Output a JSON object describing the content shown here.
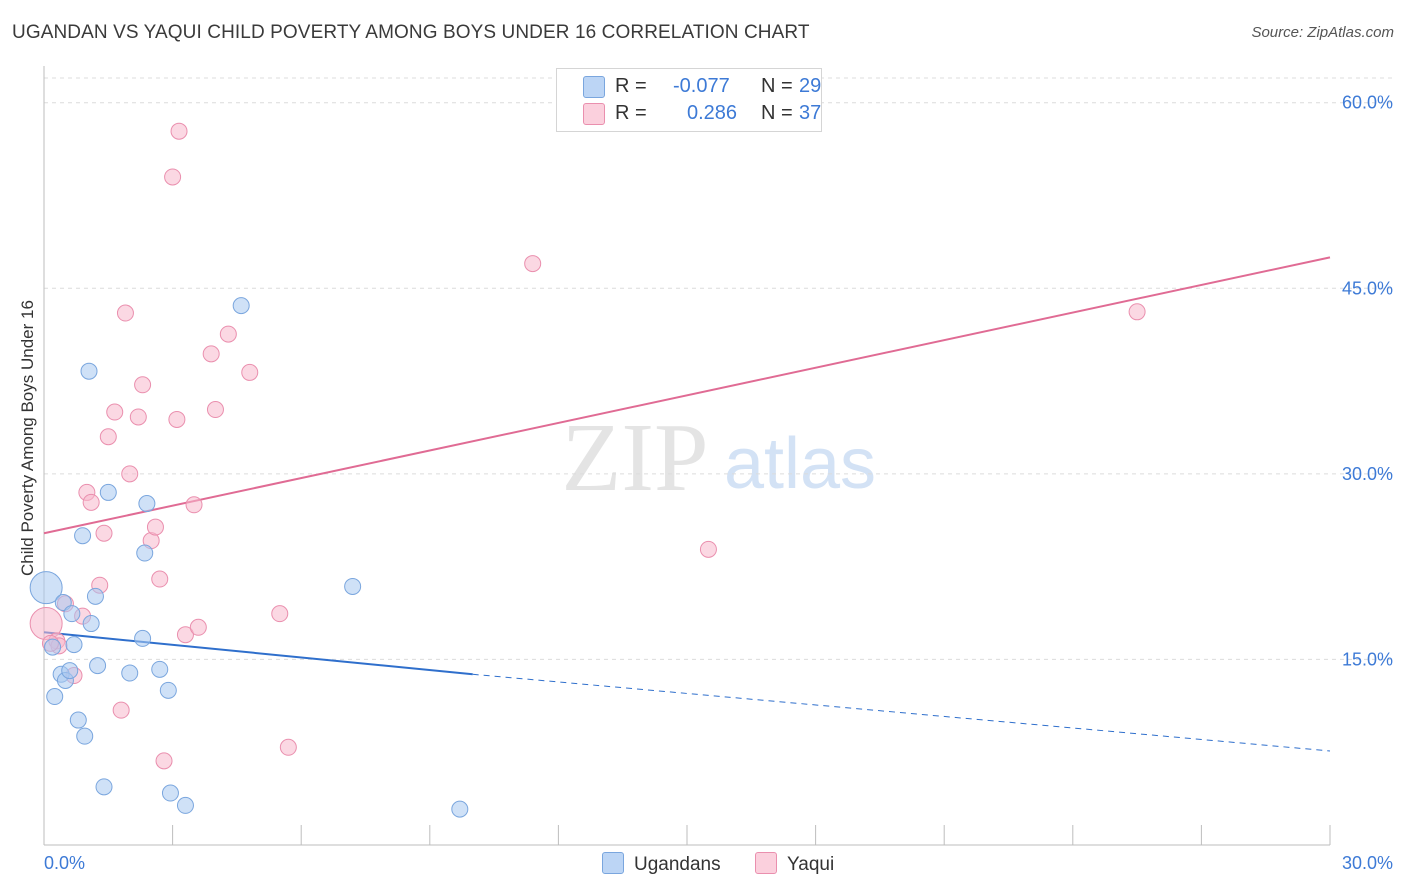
{
  "header": {
    "title": "UGANDAN VS YAQUI CHILD POVERTY AMONG BOYS UNDER 16 CORRELATION CHART",
    "source": "Source: ZipAtlas.com"
  },
  "watermark": {
    "zip": "ZIP",
    "atlas": "atlas"
  },
  "legend_top": {
    "rows": [
      {
        "r_label": "R =",
        "r_value": "-0.077",
        "n_label": "N =",
        "n_value": "29",
        "color": "#a8c8f0"
      },
      {
        "r_label": "R =",
        "r_value": "0.286",
        "n_label": "N =",
        "n_value": "37",
        "color": "#f7b8cc"
      }
    ]
  },
  "legend_bottom": {
    "ugandans": "Ugandans",
    "yaqui": "Yaqui"
  },
  "chart_data": {
    "type": "scatter",
    "ylabel": "Child Poverty Among Boys Under 16",
    "xlabel": "",
    "x_tick_labels": [
      "0.0%",
      "30.0%"
    ],
    "y_tick_labels": [
      "15.0%",
      "30.0%",
      "45.0%",
      "60.0%"
    ],
    "xlim": [
      0,
      30
    ],
    "ylim": [
      0,
      62
    ],
    "grid": true,
    "colors": {
      "ugandans_fill": "#a8c8f0",
      "ugandans_stroke": "#7aa6de",
      "ugandans_line": "#2f6fcc",
      "yaqui_fill": "#f7b8cc",
      "yaqui_stroke": "#ea8fae",
      "yaqui_line": "#e06b94",
      "tick_label": "#3d7ad6"
    },
    "series": [
      {
        "name": "Ugandans",
        "points": [
          [
            0.05,
            20.8
          ],
          [
            0.2,
            16.0
          ],
          [
            0.25,
            12.0
          ],
          [
            0.4,
            13.8
          ],
          [
            0.45,
            19.6
          ],
          [
            0.5,
            13.3
          ],
          [
            0.6,
            14.1
          ],
          [
            0.65,
            18.7
          ],
          [
            0.7,
            16.2
          ],
          [
            0.8,
            10.1
          ],
          [
            0.9,
            25.0
          ],
          [
            0.95,
            8.8
          ],
          [
            1.05,
            38.3
          ],
          [
            1.1,
            17.9
          ],
          [
            1.2,
            20.1
          ],
          [
            1.25,
            14.5
          ],
          [
            1.4,
            4.7
          ],
          [
            1.5,
            28.5
          ],
          [
            2.0,
            13.9
          ],
          [
            2.3,
            16.7
          ],
          [
            2.35,
            23.6
          ],
          [
            2.4,
            27.6
          ],
          [
            2.7,
            14.2
          ],
          [
            2.9,
            12.5
          ],
          [
            2.95,
            4.2
          ],
          [
            3.3,
            3.2
          ],
          [
            4.6,
            43.6
          ],
          [
            7.2,
            20.9
          ],
          [
            9.7,
            2.9
          ]
        ],
        "trend": {
          "x0": 0,
          "y0": 17.2,
          "x1": 10,
          "y1": 13.8,
          "dashed_to_x": 30,
          "dashed_to_y": 7.6
        }
      },
      {
        "name": "Yaqui",
        "points": [
          [
            0.05,
            17.9
          ],
          [
            0.3,
            16.5
          ],
          [
            0.35,
            16.1
          ],
          [
            0.5,
            19.5
          ],
          [
            0.7,
            13.7
          ],
          [
            0.9,
            18.5
          ],
          [
            1.0,
            28.5
          ],
          [
            1.1,
            27.7
          ],
          [
            1.3,
            21.0
          ],
          [
            1.4,
            25.2
          ],
          [
            1.5,
            33.0
          ],
          [
            1.65,
            35.0
          ],
          [
            1.8,
            10.9
          ],
          [
            1.9,
            43.0
          ],
          [
            2.0,
            30.0
          ],
          [
            2.2,
            34.6
          ],
          [
            2.3,
            37.2
          ],
          [
            2.5,
            24.6
          ],
          [
            2.6,
            25.7
          ],
          [
            2.7,
            21.5
          ],
          [
            2.8,
            6.8
          ],
          [
            3.0,
            54.0
          ],
          [
            3.1,
            34.4
          ],
          [
            3.15,
            57.7
          ],
          [
            3.3,
            17.0
          ],
          [
            3.5,
            27.5
          ],
          [
            3.6,
            17.6
          ],
          [
            3.9,
            39.7
          ],
          [
            4.0,
            35.2
          ],
          [
            4.3,
            41.3
          ],
          [
            4.8,
            38.2
          ],
          [
            5.5,
            18.7
          ],
          [
            5.7,
            7.9
          ],
          [
            11.4,
            47.0
          ],
          [
            15.5,
            23.9
          ],
          [
            25.5,
            43.1
          ],
          [
            0.15,
            16.3
          ]
        ],
        "trend": {
          "x0": 0,
          "y0": 25.2,
          "x1": 30,
          "y1": 47.5
        }
      }
    ]
  }
}
